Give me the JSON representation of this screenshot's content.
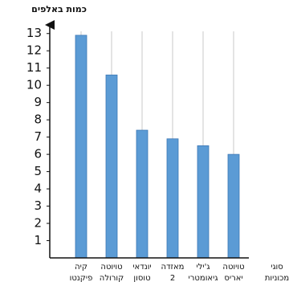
{
  "chart_data": {
    "type": "bar",
    "y_label": "כמות באלפים",
    "x_label": [
      "סוגי",
      "מכוניות"
    ],
    "categories": [
      [
        "קיה",
        "פיקנטו"
      ],
      [
        "טויוטה",
        "קורולה"
      ],
      [
        "יונדאי",
        "טוסון"
      ],
      [
        "מאזדה",
        "2"
      ],
      [
        "ג'ילי",
        "גיאומטרי"
      ],
      [
        "טויוטה",
        "יאריס"
      ]
    ],
    "values": [
      12.9,
      10.6,
      7.4,
      6.9,
      6.5,
      6.0
    ],
    "color": "#5b9bd5",
    "ylim": [
      0,
      13.5
    ],
    "yticks": [
      1,
      2,
      3,
      4,
      5,
      6,
      7,
      8,
      9,
      10,
      11,
      12,
      13
    ],
    "grid": true
  }
}
